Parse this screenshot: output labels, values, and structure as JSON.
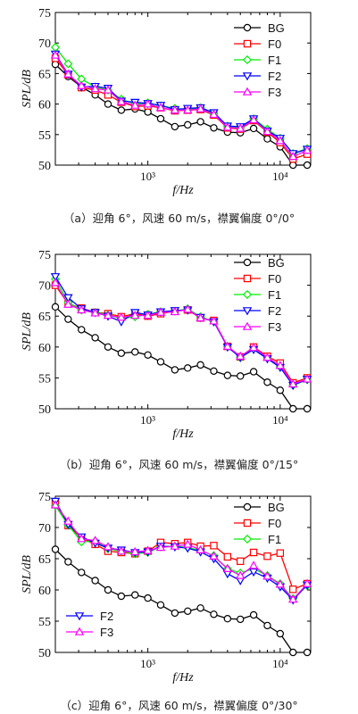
{
  "chart_data": [
    {
      "type": "line",
      "ylabel": "SPL/dB",
      "xlabel": "f/Hz",
      "xscale": "log",
      "xlim": [
        200,
        17000
      ],
      "ylim": [
        50,
        75
      ],
      "yticks": [
        50,
        55,
        60,
        65,
        70,
        75
      ],
      "xticks": [
        {
          "value": 1000,
          "label": "10³"
        },
        {
          "value": 10000,
          "label": "10⁴"
        }
      ],
      "legend_placement": "top-right",
      "caption": "（a）迎角 6°，风速 60 m/s，襟翼偏度 0°/0°",
      "x": [
        200,
        250,
        315,
        400,
        500,
        630,
        800,
        1000,
        1250,
        1600,
        2000,
        2500,
        3150,
        4000,
        5000,
        6300,
        8000,
        10000,
        12500,
        16000
      ],
      "series": [
        {
          "name": "BG",
          "color": "#000000",
          "marker": "circle",
          "values": [
            66.5,
            64.5,
            62.8,
            61.5,
            60.0,
            59.0,
            59.2,
            58.7,
            57.6,
            56.3,
            56.6,
            57.1,
            56.1,
            55.4,
            55.3,
            56.0,
            54.3,
            53.0,
            50.0,
            50.0
          ]
        },
        {
          "name": "F0",
          "color": "#ff0000",
          "marker": "square",
          "values": [
            67.5,
            64.8,
            62.7,
            62.3,
            61.5,
            60.3,
            59.6,
            59.7,
            59.4,
            58.9,
            59.0,
            59.1,
            58.2,
            56.1,
            55.9,
            57.3,
            55.4,
            53.7,
            51.0,
            51.8
          ]
        },
        {
          "name": "F1",
          "color": "#00ee00",
          "marker": "diamond",
          "values": [
            69.3,
            66.6,
            64.1,
            62.8,
            62.3,
            60.8,
            60.0,
            60.2,
            59.7,
            59.3,
            59.1,
            59.4,
            58.4,
            56.4,
            56.1,
            57.6,
            55.9,
            54.4,
            51.9,
            52.7
          ]
        },
        {
          "name": "F2",
          "color": "#0000ff",
          "marker": "triangle-down",
          "values": [
            68.2,
            64.9,
            62.8,
            62.9,
            62.6,
            60.5,
            60.3,
            60.1,
            59.8,
            59.1,
            59.3,
            59.4,
            58.6,
            56.4,
            56.3,
            57.6,
            55.6,
            54.4,
            51.9,
            52.6
          ]
        },
        {
          "name": "F3",
          "color": "#ff00ff",
          "marker": "triangle-up",
          "values": [
            68.0,
            64.9,
            63.0,
            62.5,
            62.3,
            60.4,
            59.8,
            60.0,
            59.4,
            59.0,
            59.0,
            59.2,
            58.3,
            56.2,
            56.0,
            57.4,
            55.5,
            54.0,
            51.4,
            52.4
          ]
        }
      ]
    },
    {
      "type": "line",
      "ylabel": "SPL/dB",
      "xlabel": "f/Hz",
      "xscale": "log",
      "xlim": [
        200,
        17000
      ],
      "ylim": [
        50,
        75
      ],
      "yticks": [
        50,
        55,
        60,
        65,
        70,
        75
      ],
      "xticks": [
        {
          "value": 1000,
          "label": "10³"
        },
        {
          "value": 10000,
          "label": "10⁴"
        }
      ],
      "legend_placement": "top-right",
      "caption": "（b）迎角 6°，风速 60 m/s，襟翼偏度 0°/15°",
      "x": [
        200,
        250,
        315,
        400,
        500,
        630,
        800,
        1000,
        1250,
        1600,
        2000,
        2500,
        3150,
        4000,
        5000,
        6300,
        8000,
        10000,
        12500,
        16000
      ],
      "series": [
        {
          "name": "BG",
          "color": "#000000",
          "marker": "circle",
          "values": [
            66.5,
            64.5,
            62.8,
            61.5,
            60.0,
            59.0,
            59.2,
            58.7,
            57.6,
            56.3,
            56.6,
            57.1,
            56.1,
            55.4,
            55.3,
            56.0,
            54.3,
            53.0,
            50.0,
            50.0
          ]
        },
        {
          "name": "F0",
          "color": "#ff0000",
          "marker": "square",
          "values": [
            70.0,
            67.0,
            66.3,
            65.6,
            65.4,
            64.9,
            65.4,
            65.0,
            65.4,
            65.8,
            66.0,
            64.7,
            64.3,
            60.1,
            58.4,
            60.0,
            58.5,
            57.4,
            54.2,
            55.0
          ]
        },
        {
          "name": "F1",
          "color": "#00ee00",
          "marker": "diamond",
          "values": [
            71.0,
            67.2,
            66.0,
            65.6,
            65.2,
            64.6,
            64.9,
            65.3,
            65.7,
            65.8,
            66.2,
            64.9,
            64.1,
            60.1,
            58.3,
            59.7,
            58.2,
            56.8,
            53.8,
            54.7
          ]
        },
        {
          "name": "F2",
          "color": "#0000ff",
          "marker": "triangle-down",
          "values": [
            71.4,
            68.0,
            66.2,
            65.6,
            65.0,
            64.1,
            65.6,
            65.2,
            65.7,
            65.9,
            66.0,
            64.8,
            64.1,
            60.0,
            58.3,
            59.6,
            58.1,
            56.7,
            53.8,
            54.8
          ]
        },
        {
          "name": "F3",
          "color": "#ff00ff",
          "marker": "triangle-up",
          "values": [
            70.4,
            66.9,
            66.0,
            65.5,
            65.1,
            64.8,
            65.1,
            65.1,
            65.6,
            65.7,
            66.1,
            64.7,
            64.2,
            60.1,
            58.5,
            59.9,
            58.3,
            57.0,
            54.0,
            54.8
          ]
        }
      ]
    },
    {
      "type": "line",
      "ylabel": "SPL/dB",
      "xlabel": "f/Hz",
      "xscale": "log",
      "xlim": [
        200,
        17000
      ],
      "ylim": [
        50,
        75
      ],
      "yticks": [
        50,
        55,
        60,
        65,
        70,
        75
      ],
      "xticks": [
        {
          "value": 1000,
          "label": "10³"
        },
        {
          "value": 10000,
          "label": "10⁴"
        }
      ],
      "legend_placement": "split: BG, F0, F1 top-right; F2, F3 bottom-left",
      "caption": "（c）迎角 6°，风速 60 m/s，襟翼偏度 0°/30°",
      "x": [
        200,
        250,
        315,
        400,
        500,
        630,
        800,
        1000,
        1250,
        1600,
        2000,
        2500,
        3150,
        4000,
        5000,
        6300,
        8000,
        10000,
        12500,
        16000
      ],
      "series": [
        {
          "name": "BG",
          "color": "#000000",
          "marker": "circle",
          "values": [
            66.5,
            64.5,
            62.8,
            61.5,
            60.0,
            59.0,
            59.2,
            58.7,
            57.6,
            56.3,
            56.6,
            57.1,
            56.1,
            55.4,
            55.3,
            56.0,
            54.3,
            53.0,
            50.0,
            50.0
          ]
        },
        {
          "name": "F0",
          "color": "#ff0000",
          "marker": "square",
          "values": [
            73.8,
            70.3,
            68.3,
            67.3,
            66.2,
            66.0,
            65.8,
            66.2,
            67.6,
            67.4,
            67.6,
            67.0,
            67.1,
            65.3,
            64.6,
            66.0,
            65.4,
            65.9,
            60.1,
            61.0
          ]
        },
        {
          "name": "F1",
          "color": "#00ee00",
          "marker": "diamond",
          "values": [
            73.5,
            70.4,
            67.7,
            67.8,
            66.6,
            66.2,
            65.8,
            66.0,
            66.9,
            67.0,
            66.8,
            66.3,
            65.5,
            63.4,
            62.7,
            63.4,
            62.3,
            61.0,
            58.6,
            60.7
          ]
        },
        {
          "name": "F2",
          "color": "#0000ff",
          "marker": "triangle-down",
          "values": [
            74.2,
            70.5,
            68.5,
            67.5,
            66.7,
            66.4,
            66.0,
            66.1,
            67.0,
            66.9,
            66.7,
            66.1,
            65.0,
            62.6,
            61.5,
            62.9,
            61.9,
            60.5,
            58.4,
            60.8
          ]
        },
        {
          "name": "F3",
          "color": "#ff00ff",
          "marker": "triangle-up",
          "values": [
            73.6,
            71.0,
            68.2,
            67.9,
            66.9,
            66.2,
            66.1,
            66.3,
            66.8,
            67.0,
            67.3,
            66.4,
            65.4,
            63.4,
            62.3,
            63.9,
            62.2,
            60.9,
            58.5,
            61.0
          ]
        }
      ]
    }
  ]
}
